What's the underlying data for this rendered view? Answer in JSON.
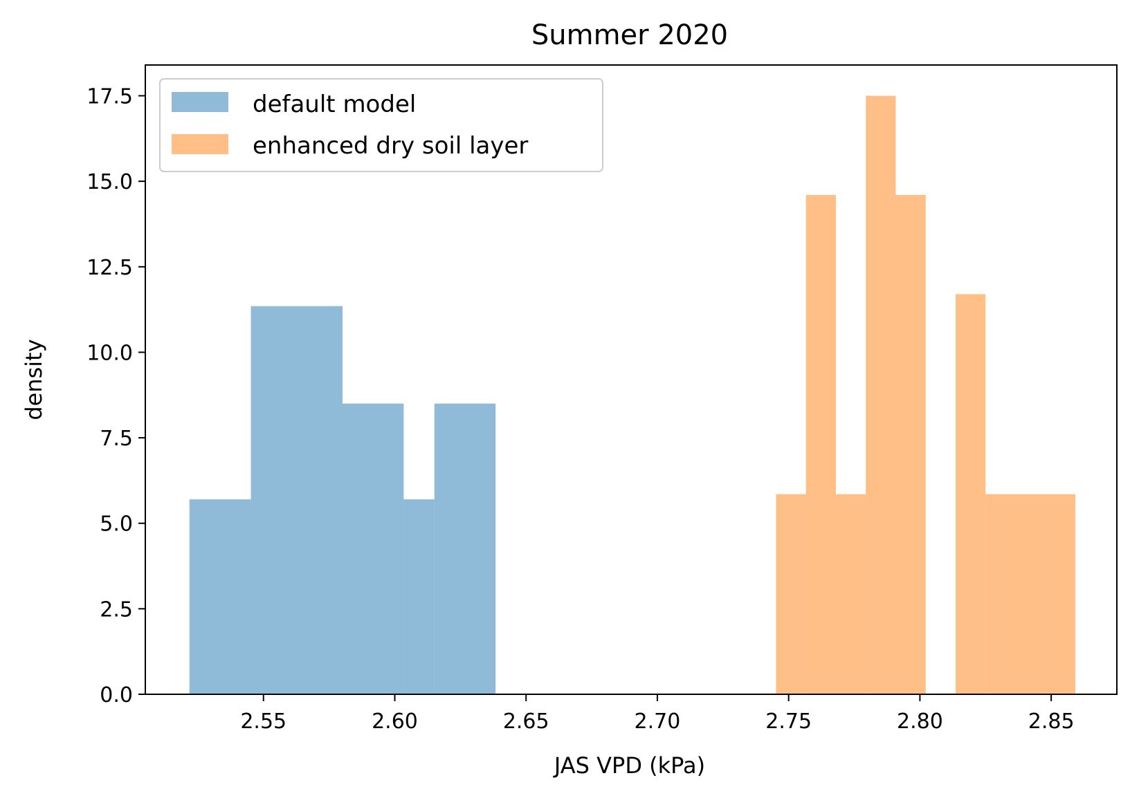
{
  "chart_data": {
    "type": "bar",
    "title": "Summer 2020",
    "xlabel": "JAS VPD (kPa)",
    "ylabel": "density",
    "xlim": [
      2.505,
      2.875
    ],
    "ylim": [
      0,
      18.4
    ],
    "xticks": [
      2.55,
      2.6,
      2.65,
      2.7,
      2.75,
      2.8,
      2.85
    ],
    "xtick_labels": [
      "2.55",
      "2.60",
      "2.65",
      "2.70",
      "2.75",
      "2.80",
      "2.85"
    ],
    "yticks": [
      0,
      2.5,
      5,
      7.5,
      10,
      12.5,
      15,
      17.5
    ],
    "ytick_labels": [
      "0.0",
      "2.5",
      "5.0",
      "7.5",
      "10.0",
      "12.5",
      "15.0",
      "17.5"
    ],
    "grid": false,
    "legend_position": "upper-left",
    "series": [
      {
        "name": "default model",
        "color": "#1f77b4",
        "opacity": 0.5,
        "bin_edges": [
          2.5218,
          2.5452,
          2.5568,
          2.5684,
          2.5801,
          2.6034,
          2.6151,
          2.6384
        ],
        "values": [
          5.7,
          11.35,
          11.35,
          11.35,
          8.5,
          5.7,
          8.5
        ]
      },
      {
        "name": "enhanced dry soil layer",
        "color": "#ff7f0e",
        "opacity": 0.5,
        "bin_edges": [
          2.7452,
          2.7566,
          2.768,
          2.7794,
          2.7908,
          2.8022,
          2.8136,
          2.825,
          2.8364,
          2.8478,
          2.8592
        ],
        "values": [
          5.85,
          14.6,
          5.85,
          17.5,
          14.6,
          0,
          11.7,
          5.85,
          5.85,
          5.85
        ]
      }
    ]
  }
}
